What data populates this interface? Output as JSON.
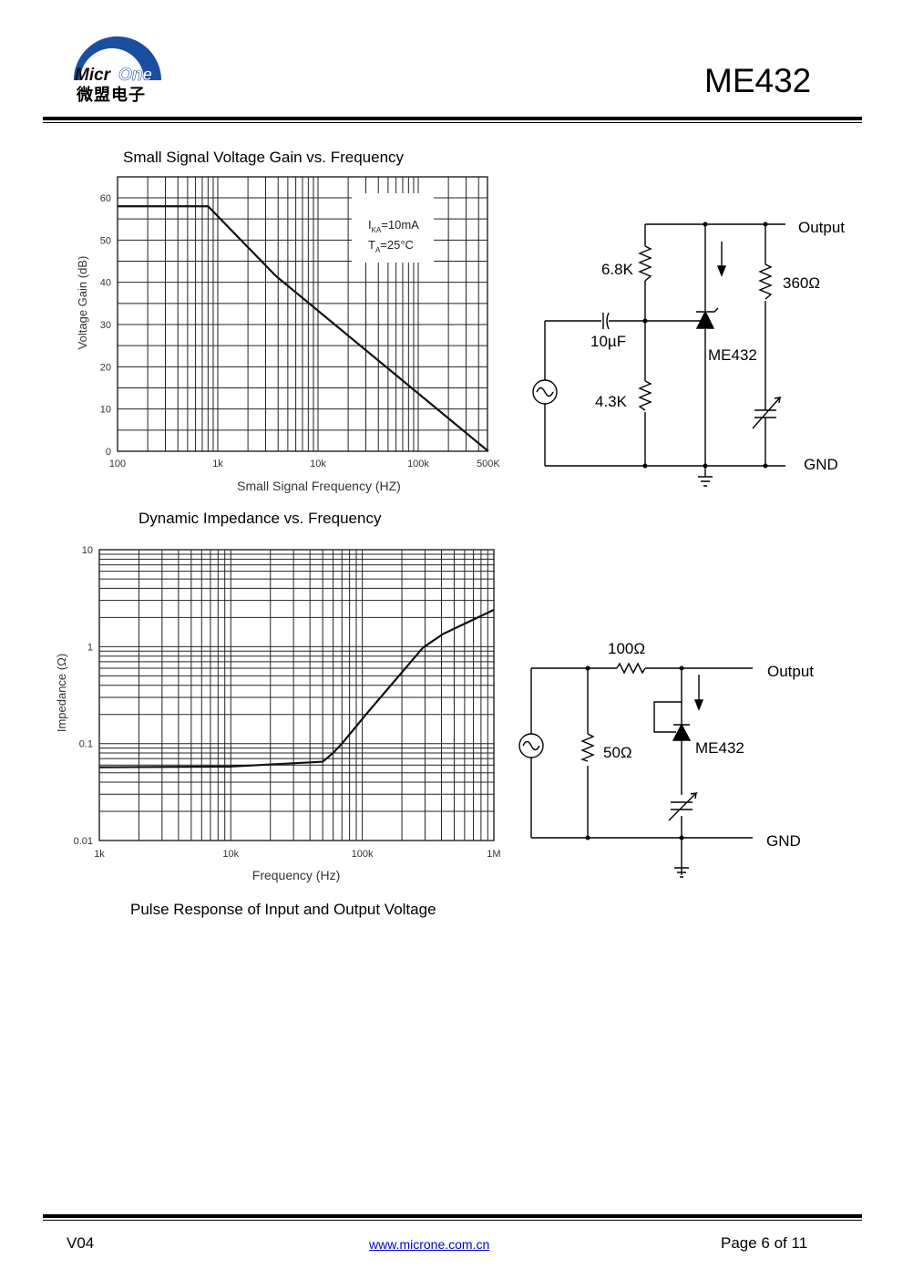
{
  "header": {
    "logo_text": "MicrOne",
    "logo_cn": "微盟电子",
    "part_number": "ME432"
  },
  "sections": {
    "gain_title": "Small Signal Voltage Gain vs. Frequency",
    "impedance_title": "Dynamic Impedance vs. Frequency",
    "pulse_title": "Pulse Response of Input and Output Voltage"
  },
  "chart_data": [
    {
      "type": "line",
      "title": "Small Signal Voltage Gain vs. Frequency",
      "xlabel": "Small Signal Frequency (HZ)",
      "ylabel": "Voltage Gain (dB)",
      "xscale": "log",
      "xlim": [
        100,
        500000
      ],
      "ylim": [
        0,
        65
      ],
      "xticks": [
        {
          "v": 100,
          "label": "100"
        },
        {
          "v": 1000,
          "label": "1k"
        },
        {
          "v": 10000,
          "label": "10k"
        },
        {
          "v": 100000,
          "label": "100k"
        },
        {
          "v": 500000,
          "label": "500K"
        }
      ],
      "yticks": [
        {
          "v": 0,
          "label": "0"
        },
        {
          "v": 10,
          "label": "10"
        },
        {
          "v": 20,
          "label": "20"
        },
        {
          "v": 30,
          "label": "30"
        },
        {
          "v": 40,
          "label": "40"
        },
        {
          "v": 50,
          "label": "50"
        },
        {
          "v": 60,
          "label": "60"
        }
      ],
      "annotation": {
        "line1": "I",
        "line1_sub": "KA",
        "line1_rest": "=10mA",
        "line2": "T",
        "line2_sub": "A",
        "line2_rest": "=25°C"
      },
      "series": [
        {
          "name": "Gain",
          "x": [
            100,
            800,
            3800,
            500000
          ],
          "y": [
            58,
            58,
            41.5,
            0
          ]
        }
      ]
    },
    {
      "type": "line",
      "title": "Dynamic Impedance vs. Frequency",
      "xlabel": "Frequency (Hz)",
      "ylabel": "Impedance (Ω)",
      "xscale": "log",
      "yscale": "log",
      "xlim": [
        1000,
        1000000
      ],
      "ylim": [
        0.01,
        10
      ],
      "xticks": [
        {
          "v": 1000,
          "label": "1k"
        },
        {
          "v": 10000,
          "label": "10k"
        },
        {
          "v": 100000,
          "label": "100k"
        },
        {
          "v": 1000000,
          "label": "1M"
        }
      ],
      "yticks": [
        {
          "v": 0.01,
          "label": "0.01"
        },
        {
          "v": 0.1,
          "label": "0.1"
        },
        {
          "v": 1,
          "label": "1"
        },
        {
          "v": 10,
          "label": "10"
        }
      ],
      "series": [
        {
          "name": "Impedance",
          "x": [
            1000,
            10000,
            50000,
            60000,
            70000,
            110000,
            290000,
            410000,
            1000000
          ],
          "y": [
            0.057,
            0.058,
            0.065,
            0.08,
            0.1,
            0.21,
            0.98,
            1.35,
            2.4
          ]
        }
      ]
    }
  ],
  "circuit1": {
    "r_top": "6.8K",
    "cap": "10µF",
    "r_bottom": "4.3K",
    "r_load": "360Ω",
    "device": "ME432",
    "output": "Output",
    "gnd": "GND"
  },
  "circuit2": {
    "r_series": "100Ω",
    "r_shunt": "50Ω",
    "device": "ME432",
    "output": "Output",
    "gnd": "GND"
  },
  "footer": {
    "version": "V04",
    "url": "www.microne.com.cn",
    "page": "Page 6 of 11"
  }
}
